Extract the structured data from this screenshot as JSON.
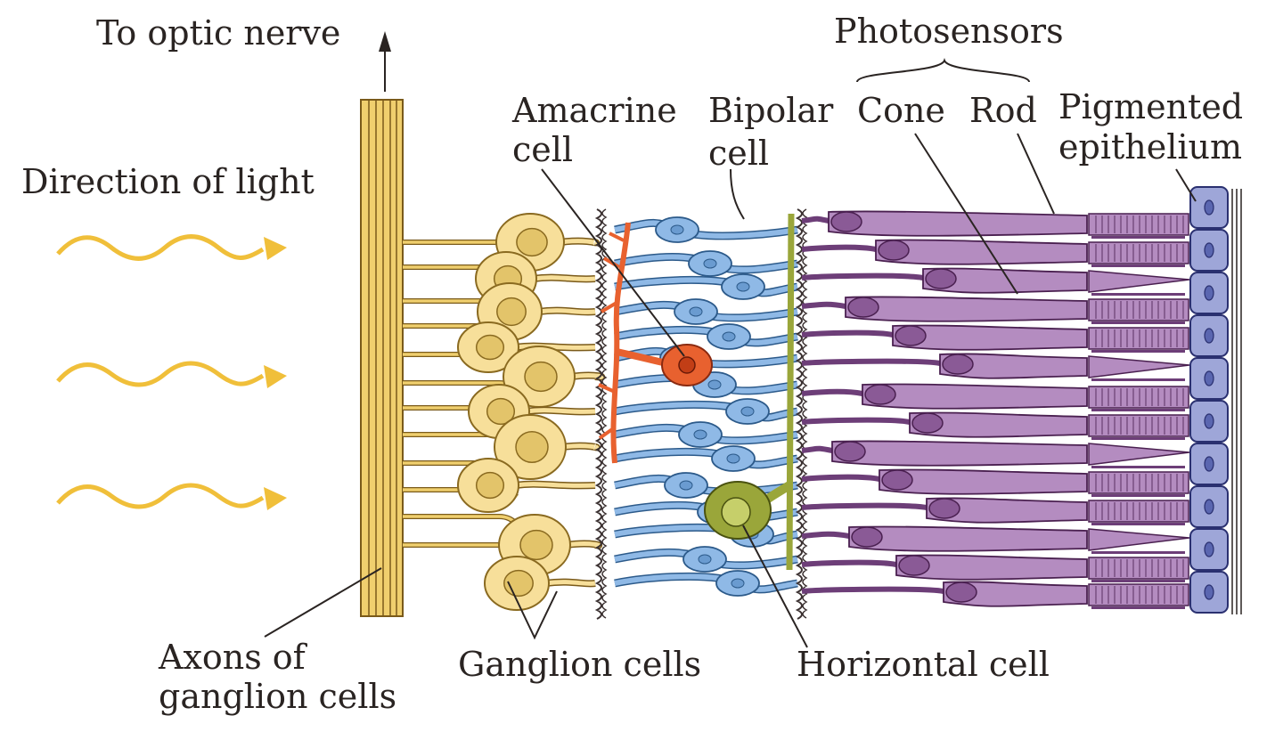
{
  "labels": {
    "to_optic_nerve": "To optic nerve",
    "direction_of_light": "Direction of light",
    "photosensors": "Photosensors",
    "amacrine_1": "Amacrine",
    "amacrine_2": "cell",
    "bipolar_1": "Bipolar",
    "bipolar_2": "cell",
    "cone": "Cone",
    "rod": "Rod",
    "pigmented_1": "Pigmented",
    "pigmented_2": "epithelium",
    "axons_1": "Axons of",
    "axons_2": "ganglion cells",
    "ganglion_cells": "Ganglion cells",
    "horizontal_cell": "Horizontal cell"
  },
  "colors": {
    "light_wave": "#f0bf3a",
    "axon_fibers": "#f0cf6e",
    "ganglion": "#f7df9a",
    "amacrine": "#e8612f",
    "bipolar": "#8fb9e6",
    "horizontal": "#9aa63a",
    "photoreceptor": "#b48cc0",
    "photoreceptor_dark": "#6d3e78",
    "epithelium": "#9ea6d8",
    "ink": "#2a2422"
  }
}
